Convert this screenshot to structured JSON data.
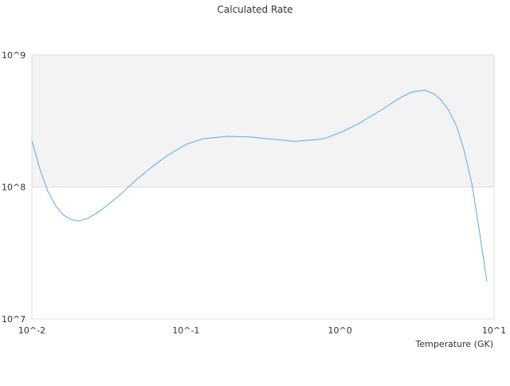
{
  "chart_data": {
    "type": "line",
    "title": "Calculated Rate",
    "xlabel": "Temperature (GK)",
    "ylabel": "",
    "x_scale": "log",
    "y_scale": "log",
    "xlim": [
      0.01,
      10
    ],
    "ylim": [
      10000000,
      1000000000
    ],
    "x_ticks": [
      {
        "value": 0.01,
        "label": "10^-2"
      },
      {
        "value": 0.1,
        "label": "10^-1"
      },
      {
        "value": 1,
        "label": "10^0"
      },
      {
        "value": 10,
        "label": "10^1"
      }
    ],
    "y_ticks": [
      {
        "value": 10000000,
        "label": "10^7"
      },
      {
        "value": 100000000,
        "label": "10^8"
      },
      {
        "value": 1000000000,
        "label": "10^9"
      }
    ],
    "grid": "alternating horizontal bands",
    "legend": "none",
    "colors": {
      "line": "#5fa8f0",
      "band": "#f3f3f3",
      "grid": "#dddddd"
    },
    "series": [
      {
        "x": [
          0.01,
          0.01127,
          0.01269,
          0.01429,
          0.0161,
          0.01815,
          0.0202,
          0.023,
          0.0259,
          0.0292,
          0.0371,
          0.047,
          0.0597,
          0.0757,
          0.1,
          0.129,
          0.185,
          0.264,
          0.378,
          0.509,
          0.728,
          0.82,
          1.04,
          1.32,
          1.89,
          2.39,
          2.9,
          3.55,
          4.1,
          4.5,
          5.07,
          5.71,
          6.36,
          7.17,
          7.97,
          8.98
        ],
        "y": [
          225000000.0,
          137000000.0,
          93000000.0,
          72000000.0,
          61000000.0,
          56500000.0,
          55300000.0,
          57700000.0,
          62800000.0,
          69200000.0,
          86500000.0,
          112000000.0,
          141000000.0,
          173000000.0,
          210000000.0,
          232000000.0,
          242000000.0,
          239000000.0,
          229000000.0,
          222000000.0,
          229000000.0,
          236000000.0,
          263000000.0,
          302000000.0,
          388000000.0,
          466000000.0,
          524000000.0,
          542000000.0,
          506000000.0,
          459000000.0,
          383000000.0,
          290000000.0,
          194000000.0,
          106000000.0,
          49500000.0,
          19200000.0
        ]
      }
    ]
  }
}
